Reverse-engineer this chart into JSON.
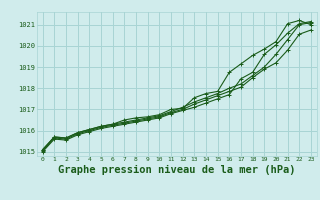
{
  "background_color": "#d0ecec",
  "grid_color": "#a8d4d4",
  "line_color": "#1a5c1a",
  "title": "Graphe pression niveau de la mer (hPa)",
  "title_fontsize": 7.5,
  "xlim": [
    -0.5,
    23.5
  ],
  "ylim": [
    1014.8,
    1021.6
  ],
  "yticks": [
    1015,
    1016,
    1017,
    1018,
    1019,
    1020,
    1021
  ],
  "xticks": [
    0,
    1,
    2,
    3,
    4,
    5,
    6,
    7,
    8,
    9,
    10,
    11,
    12,
    13,
    14,
    15,
    16,
    17,
    18,
    19,
    20,
    21,
    22,
    23
  ],
  "line1_x": [
    0,
    1,
    2,
    3,
    4,
    5,
    6,
    7,
    8,
    9,
    10,
    11,
    12,
    13,
    14,
    15,
    16,
    17,
    18,
    19,
    20,
    21,
    22,
    23
  ],
  "line1_y": [
    1015.1,
    1015.7,
    1015.65,
    1015.9,
    1016.05,
    1016.2,
    1016.3,
    1016.4,
    1016.5,
    1016.6,
    1016.7,
    1016.9,
    1017.1,
    1017.35,
    1017.55,
    1017.75,
    1018.0,
    1018.2,
    1018.6,
    1019.0,
    1019.6,
    1020.3,
    1021.0,
    1021.1
  ],
  "line2_x": [
    0,
    1,
    2,
    3,
    4,
    5,
    6,
    7,
    8,
    9,
    10,
    11,
    12,
    13,
    14,
    15,
    16,
    17,
    18,
    19,
    20,
    21,
    22,
    23
  ],
  "line2_y": [
    1015.05,
    1015.65,
    1015.6,
    1015.85,
    1016.0,
    1016.15,
    1016.25,
    1016.35,
    1016.45,
    1016.55,
    1016.65,
    1016.85,
    1017.0,
    1017.25,
    1017.45,
    1017.65,
    1017.85,
    1018.05,
    1018.5,
    1018.9,
    1019.2,
    1019.8,
    1020.55,
    1020.75
  ],
  "line3_x": [
    0,
    1,
    2,
    3,
    4,
    5,
    6,
    7,
    8,
    9,
    10,
    11,
    12,
    13,
    14,
    15,
    16,
    17,
    18,
    19,
    20,
    21,
    22,
    23
  ],
  "line3_y": [
    1015.0,
    1015.6,
    1015.55,
    1015.8,
    1015.95,
    1016.1,
    1016.2,
    1016.3,
    1016.4,
    1016.5,
    1016.6,
    1016.8,
    1016.95,
    1017.1,
    1017.3,
    1017.5,
    1017.7,
    1018.45,
    1018.75,
    1019.6,
    1020.05,
    1020.6,
    1021.05,
    1021.15
  ],
  "line4_x": [
    0,
    1,
    2,
    3,
    4,
    5,
    6,
    7,
    8,
    9,
    10,
    11,
    12,
    13,
    14,
    15,
    16,
    17,
    18,
    19,
    20,
    21,
    22,
    23
  ],
  "line4_y": [
    1015.1,
    1015.7,
    1015.65,
    1015.9,
    1016.05,
    1016.2,
    1016.3,
    1016.5,
    1016.6,
    1016.65,
    1016.75,
    1017.0,
    1017.05,
    1017.55,
    1017.75,
    1017.85,
    1018.75,
    1019.15,
    1019.55,
    1019.85,
    1020.2,
    1021.05,
    1021.2,
    1021.0
  ]
}
